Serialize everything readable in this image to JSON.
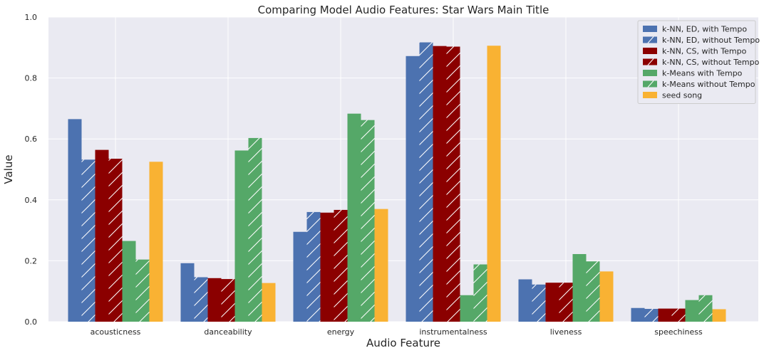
{
  "chart_data": {
    "type": "bar",
    "title": "Comparing Model Audio Features: Star Wars Main Title",
    "xlabel": "Audio Feature",
    "ylabel": "Value",
    "ylim": [
      0,
      1.0
    ],
    "yticks": [
      "0.0",
      "0.2",
      "0.4",
      "0.6",
      "0.8",
      "1.0"
    ],
    "grid": true,
    "legend_position": "top-right",
    "categories": [
      "acousticness",
      "danceability",
      "energy",
      "instrumentalness",
      "liveness",
      "speechiness"
    ],
    "series": [
      {
        "name": "k-NN, ED, with Tempo",
        "color": "#4c72b0",
        "hatch": false,
        "values": [
          0.665,
          0.192,
          0.295,
          0.872,
          0.139,
          0.045
        ]
      },
      {
        "name": "k-NN, ED, without Tempo",
        "color": "#4c72b0",
        "hatch": true,
        "values": [
          0.532,
          0.146,
          0.36,
          0.917,
          0.122,
          0.042
        ]
      },
      {
        "name": "k-NN, CS, with Tempo",
        "color": "#8b0000",
        "hatch": false,
        "values": [
          0.564,
          0.143,
          0.358,
          0.905,
          0.128,
          0.043
        ]
      },
      {
        "name": "k-NN, CS, without Tempo",
        "color": "#8b0000",
        "hatch": true,
        "values": [
          0.535,
          0.14,
          0.367,
          0.903,
          0.128,
          0.043
        ]
      },
      {
        "name": "k-Means with Tempo",
        "color": "#55a868",
        "hatch": false,
        "values": [
          0.265,
          0.562,
          0.683,
          0.087,
          0.222,
          0.071
        ]
      },
      {
        "name": "k-Means without Tempo",
        "color": "#55a868",
        "hatch": true,
        "values": [
          0.204,
          0.603,
          0.662,
          0.188,
          0.198,
          0.087
        ]
      },
      {
        "name": "seed song",
        "color": "#f9b233",
        "hatch": false,
        "values": [
          0.525,
          0.127,
          0.37,
          0.906,
          0.165,
          0.041
        ]
      }
    ]
  }
}
